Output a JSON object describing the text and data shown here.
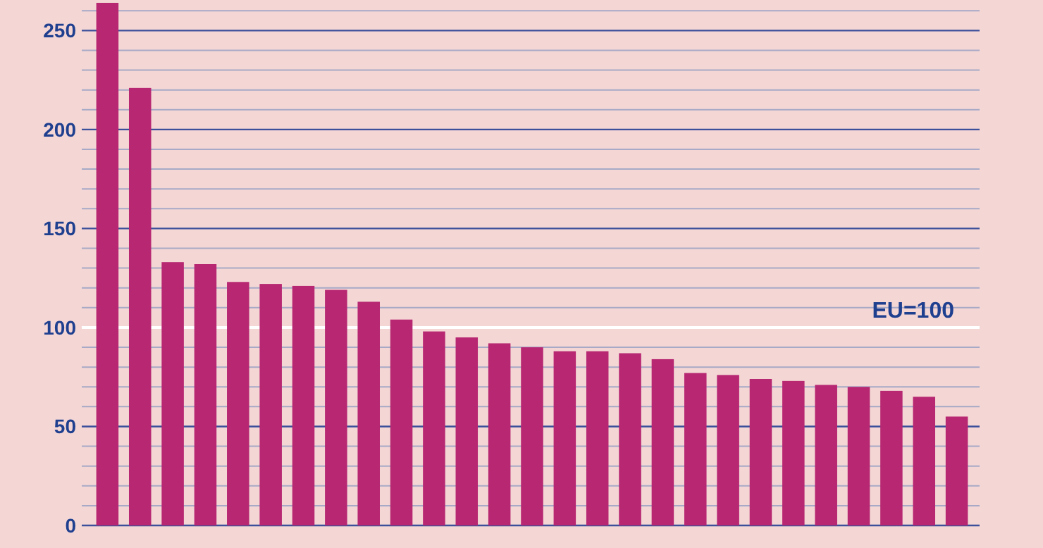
{
  "chart_data": {
    "type": "bar",
    "categories": [
      null,
      null,
      null,
      null,
      null,
      null,
      null,
      null,
      null,
      null,
      null,
      null,
      null,
      null,
      null,
      null,
      null,
      null,
      null,
      null,
      null,
      null,
      null,
      null,
      null,
      null,
      null
    ],
    "values": [
      264,
      221,
      133,
      132,
      123,
      122,
      121,
      119,
      113,
      104,
      98,
      95,
      92,
      90,
      88,
      88,
      87,
      84,
      77,
      76,
      74,
      73,
      71,
      70,
      68,
      65,
      55
    ],
    "color": "#b72772",
    "ylim": [
      0,
      264
    ],
    "yticks": [
      0,
      {
        "value": 10,
        "label": null
      },
      {
        "value": 20,
        "label": null
      },
      {
        "value": 30,
        "label": null
      },
      {
        "value": 40,
        "label": null
      },
      50,
      {
        "value": 60,
        "label": null
      },
      {
        "value": 70,
        "label": null
      },
      {
        "value": 80,
        "label": null
      },
      {
        "value": 90,
        "label": null
      },
      100,
      {
        "value": 110,
        "label": null
      },
      {
        "value": 120,
        "label": null
      },
      {
        "value": 130,
        "label": null
      },
      {
        "value": 140,
        "label": null
      },
      150,
      {
        "value": 160,
        "label": null
      },
      {
        "value": 170,
        "label": null
      },
      {
        "value": 180,
        "label": null
      },
      {
        "value": 190,
        "label": null
      },
      200,
      {
        "value": 210,
        "label": null
      },
      {
        "value": 220,
        "label": null
      },
      {
        "value": 230,
        "label": null
      },
      {
        "value": 240,
        "label": null
      },
      250,
      {
        "value": 260,
        "label": null
      }
    ],
    "grid": true,
    "ref_lines": [
      {
        "axis": "y",
        "value": 100,
        "label": "EU=100",
        "color": "#ffffff"
      }
    ]
  }
}
